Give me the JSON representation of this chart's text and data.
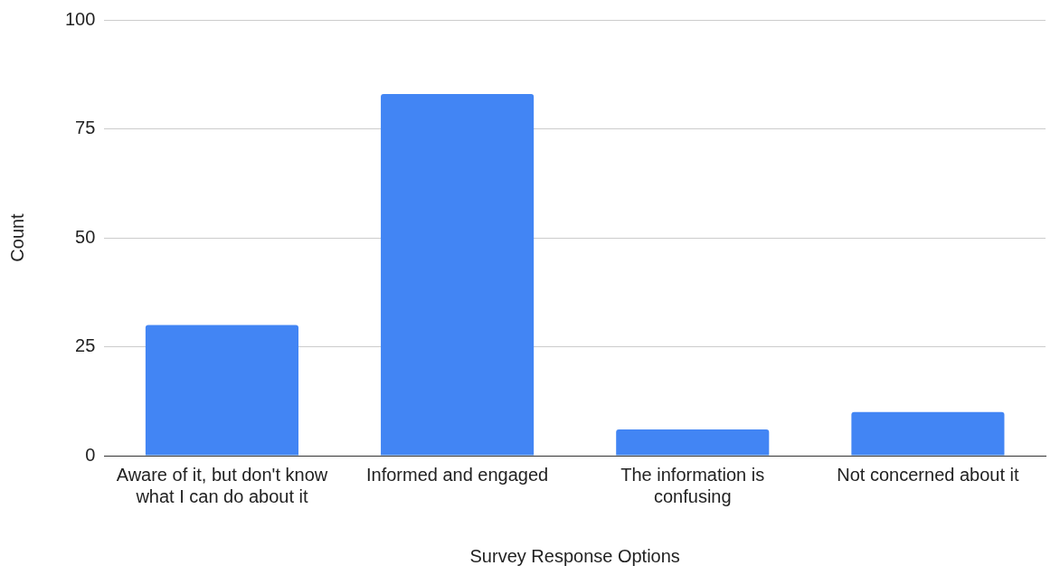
{
  "chart_data": {
    "type": "bar",
    "xlabel": "Survey Response Options",
    "ylabel": "Count",
    "categories": [
      "Aware of it, but don't know what I can do about it",
      "Informed and engaged",
      "The information is confusing",
      "Not concerned about it"
    ],
    "values": [
      30,
      83,
      6,
      10
    ],
    "color": "#4285f4",
    "ylim": [
      0,
      100
    ],
    "yticks": [
      0,
      25,
      50,
      75,
      100
    ],
    "grid": "y",
    "legend": false
  }
}
